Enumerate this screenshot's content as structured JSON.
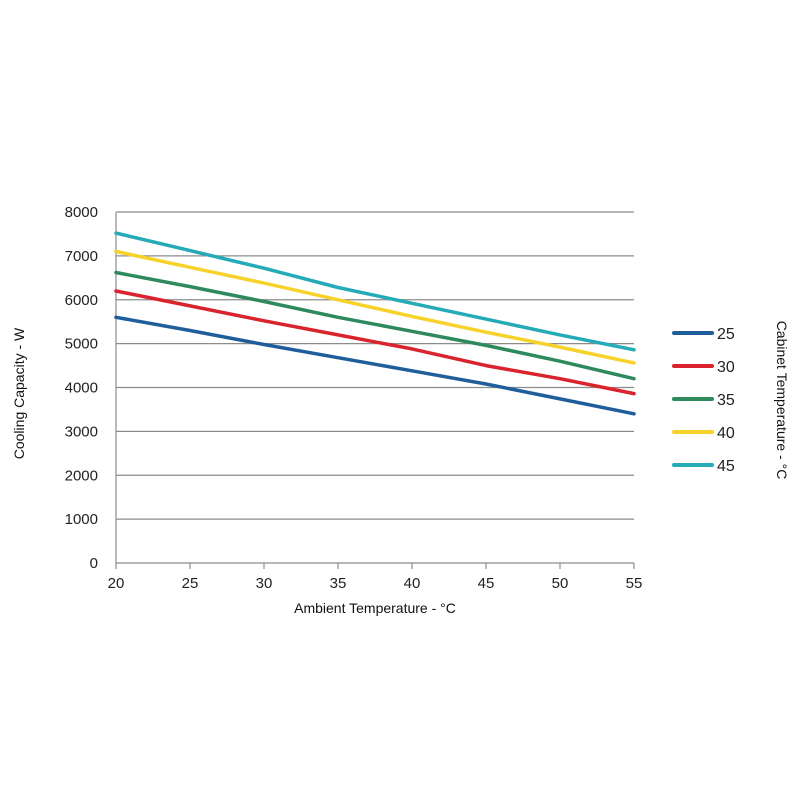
{
  "chart_data": {
    "type": "line",
    "xlabel": "Ambient Temperature - °C",
    "ylabel": "Cooling Capacity - W",
    "legend_title": "Cabinet Temperature - °C",
    "legend_position": "right",
    "xlim": [
      20,
      55
    ],
    "ylim": [
      0,
      8000
    ],
    "xticks": [
      20,
      25,
      30,
      35,
      40,
      45,
      50,
      55
    ],
    "yticks": [
      0,
      1000,
      2000,
      3000,
      4000,
      5000,
      6000,
      7000,
      8000
    ],
    "grid": true,
    "x": [
      20,
      25,
      30,
      35,
      40,
      45,
      50,
      55
    ],
    "series": [
      {
        "name": "25",
        "color": "#1f5e9a",
        "values": [
          5600,
          5300,
          4980,
          4680,
          4380,
          4080,
          3740,
          3400
        ]
      },
      {
        "name": "30",
        "color": "#d9232d",
        "values": [
          6200,
          5860,
          5520,
          5200,
          4880,
          4500,
          4200,
          3860
        ]
      },
      {
        "name": "35",
        "color": "#2e8a5c",
        "values": [
          6620,
          6300,
          5960,
          5600,
          5280,
          4960,
          4600,
          4200
        ]
      },
      {
        "name": "40",
        "color": "#f6d22a",
        "values": [
          7100,
          6740,
          6380,
          6000,
          5620,
          5260,
          4920,
          4560
        ]
      },
      {
        "name": "45",
        "color": "#25aab8",
        "values": [
          7520,
          7120,
          6720,
          6280,
          5920,
          5560,
          5200,
          4860
        ]
      }
    ]
  }
}
